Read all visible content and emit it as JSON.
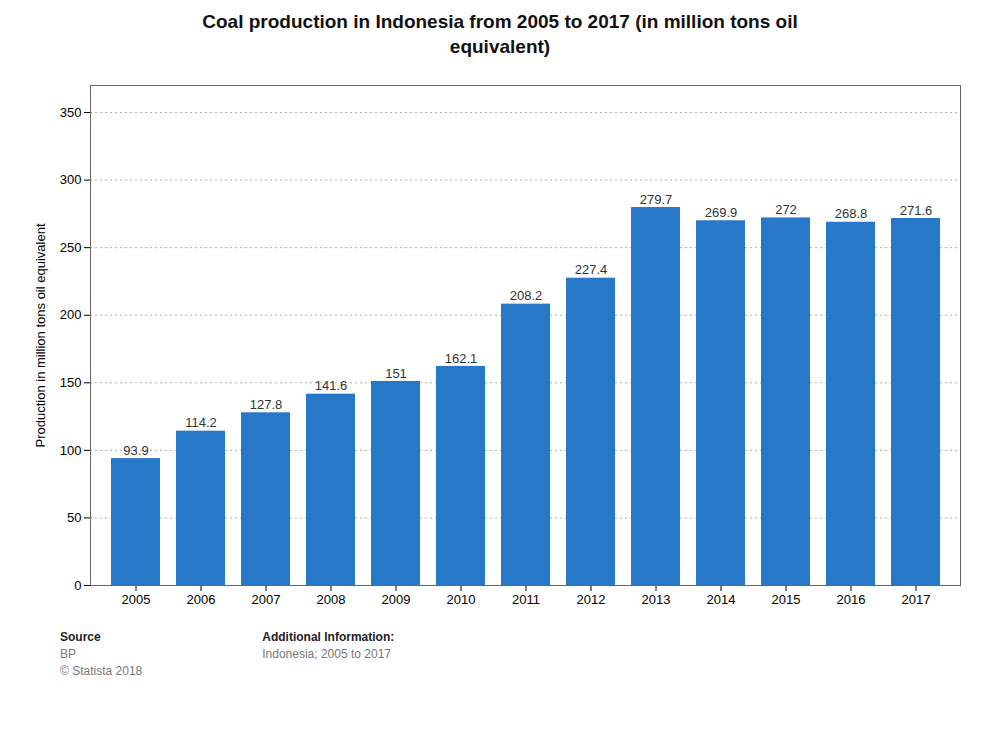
{
  "chart_data": {
    "type": "bar",
    "title": "Coal production in Indonesia from 2005 to 2017 (in million tons oil\nequivalent)",
    "categories": [
      "2005",
      "2006",
      "2007",
      "2008",
      "2009",
      "2010",
      "2011",
      "2012",
      "2013",
      "2014",
      "2015",
      "2016",
      "2017"
    ],
    "values": [
      93.9,
      114.2,
      127.8,
      141.6,
      151,
      162.1,
      208.2,
      227.4,
      279.7,
      269.9,
      272,
      268.8,
      271.6
    ],
    "color": "#2878C8",
    "ylabel": "Production in million tons oil equivalent",
    "ylim": [
      0,
      370
    ],
    "yticks": [
      0,
      50,
      100,
      150,
      200,
      250,
      300,
      350
    ],
    "grid": true,
    "data_labels": true,
    "annotations": [
      "Source",
      "BP",
      "© Statista 2018",
      "Additional Information:",
      "Indonesia; 2005 to 2017"
    ]
  }
}
